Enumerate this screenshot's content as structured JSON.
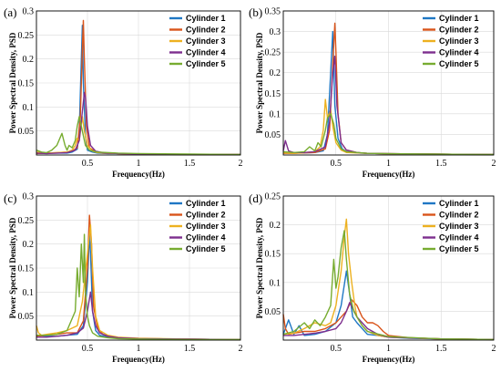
{
  "chart_data": [
    {
      "panel": "(a)",
      "type": "line",
      "xlabel": "Frequency(Hz)",
      "ylabel": "Power Spectral Density, PSD",
      "xlim": [
        0,
        2
      ],
      "ylim": [
        0,
        0.3
      ],
      "xticks": [
        "0.5",
        "1",
        "1.5",
        "2"
      ],
      "yticks": [
        "0.05",
        "0.1",
        "0.15",
        "0.2",
        "0.25",
        "0.3"
      ],
      "grid": true,
      "legend": "top-right",
      "series": [
        {
          "name": "Cylinder 1",
          "color": "#1f77c4",
          "x": [
            0,
            0.1,
            0.2,
            0.3,
            0.35,
            0.4,
            0.42,
            0.44,
            0.45,
            0.46,
            0.48,
            0.5,
            0.55,
            0.6,
            0.7,
            0.8,
            1.0,
            1.5,
            2.0
          ],
          "y": [
            0.005,
            0.004,
            0.004,
            0.004,
            0.006,
            0.012,
            0.05,
            0.2,
            0.27,
            0.15,
            0.04,
            0.01,
            0.006,
            0.004,
            0.003,
            0.003,
            0.002,
            0.001,
            0.001
          ]
        },
        {
          "name": "Cylinder 2",
          "color": "#d9541a",
          "x": [
            0,
            0.1,
            0.2,
            0.3,
            0.35,
            0.4,
            0.43,
            0.45,
            0.46,
            0.47,
            0.49,
            0.52,
            0.58,
            0.65,
            0.8,
            1.0,
            1.5,
            2.0
          ],
          "y": [
            0.003,
            0.004,
            0.005,
            0.006,
            0.008,
            0.015,
            0.08,
            0.22,
            0.28,
            0.2,
            0.06,
            0.015,
            0.007,
            0.004,
            0.003,
            0.002,
            0.001,
            0.001
          ]
        },
        {
          "name": "Cylinder 3",
          "color": "#edb120",
          "x": [
            0,
            0.1,
            0.2,
            0.3,
            0.35,
            0.38,
            0.4,
            0.42,
            0.45,
            0.47,
            0.5,
            0.55,
            0.6,
            0.8,
            1.0,
            1.5,
            2.0
          ],
          "y": [
            0.006,
            0.004,
            0.005,
            0.006,
            0.01,
            0.02,
            0.035,
            0.03,
            0.08,
            0.05,
            0.02,
            0.008,
            0.005,
            0.003,
            0.002,
            0.001,
            0.001
          ]
        },
        {
          "name": "Cylinder 4",
          "color": "#7e2f8e",
          "x": [
            0,
            0.1,
            0.2,
            0.3,
            0.38,
            0.42,
            0.45,
            0.47,
            0.48,
            0.5,
            0.53,
            0.58,
            0.65,
            0.8,
            1.0,
            1.5,
            2.0
          ],
          "y": [
            0.004,
            0.003,
            0.004,
            0.005,
            0.01,
            0.03,
            0.09,
            0.13,
            0.12,
            0.06,
            0.02,
            0.008,
            0.005,
            0.003,
            0.002,
            0.001,
            0.001
          ]
        },
        {
          "name": "Cylinder 5",
          "color": "#77ac30",
          "x": [
            0,
            0.05,
            0.1,
            0.15,
            0.2,
            0.25,
            0.28,
            0.3,
            0.32,
            0.35,
            0.38,
            0.4,
            0.42,
            0.45,
            0.48,
            0.52,
            0.6,
            0.8,
            1.0,
            1.5,
            2.0
          ],
          "y": [
            0.01,
            0.006,
            0.005,
            0.01,
            0.02,
            0.045,
            0.02,
            0.01,
            0.02,
            0.015,
            0.03,
            0.06,
            0.08,
            0.05,
            0.02,
            0.01,
            0.006,
            0.004,
            0.003,
            0.002,
            0.001
          ]
        }
      ]
    },
    {
      "panel": "(b)",
      "type": "line",
      "xlabel": "Frequency(Hz)",
      "ylabel": "Power Spectral Density, PSD",
      "xlim": [
        0,
        2
      ],
      "ylim": [
        0,
        0.35
      ],
      "xticks": [
        "0.5",
        "1",
        "1.5",
        "2"
      ],
      "yticks": [
        "0.05",
        "0.1",
        "0.15",
        "0.2",
        "0.25",
        "0.3",
        "0.35"
      ],
      "grid": true,
      "legend": "top-right",
      "series": [
        {
          "name": "Cylinder 1",
          "color": "#1f77c4",
          "x": [
            0,
            0.1,
            0.2,
            0.3,
            0.38,
            0.42,
            0.45,
            0.47,
            0.49,
            0.52,
            0.56,
            0.6,
            0.7,
            0.8,
            1.0,
            1.5,
            2.0
          ],
          "y": [
            0.006,
            0.005,
            0.005,
            0.006,
            0.01,
            0.05,
            0.2,
            0.3,
            0.12,
            0.04,
            0.015,
            0.008,
            0.005,
            0.004,
            0.003,
            0.002,
            0.001
          ]
        },
        {
          "name": "Cylinder 2",
          "color": "#d9541a",
          "x": [
            0,
            0.1,
            0.2,
            0.3,
            0.4,
            0.44,
            0.47,
            0.49,
            0.5,
            0.52,
            0.55,
            0.6,
            0.7,
            0.8,
            1.0,
            1.5,
            2.0
          ],
          "y": [
            0.004,
            0.004,
            0.005,
            0.006,
            0.015,
            0.06,
            0.22,
            0.32,
            0.25,
            0.1,
            0.03,
            0.012,
            0.006,
            0.004,
            0.003,
            0.002,
            0.001
          ]
        },
        {
          "name": "Cylinder 3",
          "color": "#edb120",
          "x": [
            0,
            0.1,
            0.2,
            0.3,
            0.35,
            0.38,
            0.4,
            0.42,
            0.45,
            0.47,
            0.5,
            0.55,
            0.6,
            0.8,
            1.0,
            1.5,
            2.0
          ],
          "y": [
            0.005,
            0.004,
            0.006,
            0.008,
            0.02,
            0.06,
            0.135,
            0.09,
            0.11,
            0.07,
            0.03,
            0.012,
            0.006,
            0.004,
            0.003,
            0.002,
            0.001
          ]
        },
        {
          "name": "Cylinder 4",
          "color": "#7e2f8e",
          "x": [
            0,
            0.02,
            0.05,
            0.1,
            0.2,
            0.3,
            0.4,
            0.44,
            0.47,
            0.49,
            0.51,
            0.55,
            0.6,
            0.7,
            0.8,
            1.0,
            1.5,
            2.0
          ],
          "y": [
            0.01,
            0.035,
            0.01,
            0.006,
            0.006,
            0.008,
            0.02,
            0.08,
            0.2,
            0.24,
            0.12,
            0.03,
            0.012,
            0.006,
            0.004,
            0.003,
            0.002,
            0.001
          ]
        },
        {
          "name": "Cylinder 5",
          "color": "#77ac30",
          "x": [
            0,
            0.1,
            0.2,
            0.25,
            0.3,
            0.33,
            0.36,
            0.4,
            0.42,
            0.45,
            0.48,
            0.5,
            0.55,
            0.6,
            0.8,
            1.0,
            1.5,
            2.0
          ],
          "y": [
            0.008,
            0.006,
            0.008,
            0.02,
            0.01,
            0.03,
            0.02,
            0.06,
            0.09,
            0.1,
            0.075,
            0.04,
            0.015,
            0.008,
            0.004,
            0.003,
            0.002,
            0.001
          ]
        }
      ]
    },
    {
      "panel": "(c)",
      "type": "line",
      "xlabel": "Frequency(Hz)",
      "ylabel": "Power Spectral Density, PSD",
      "xlim": [
        0,
        2
      ],
      "ylim": [
        0,
        0.3
      ],
      "xticks": [
        "0.5",
        "1",
        "1.5",
        "2"
      ],
      "yticks": [
        "0.05",
        "0.1",
        "0.15",
        "0.2",
        "0.25",
        "0.3"
      ],
      "grid": true,
      "legend": "top-right",
      "series": [
        {
          "name": "Cylinder 1",
          "color": "#1f77c4",
          "x": [
            0,
            0.1,
            0.2,
            0.3,
            0.4,
            0.46,
            0.5,
            0.52,
            0.53,
            0.55,
            0.58,
            0.62,
            0.7,
            0.8,
            1.0,
            1.5,
            2.0
          ],
          "y": [
            0.01,
            0.008,
            0.008,
            0.01,
            0.012,
            0.03,
            0.12,
            0.22,
            0.18,
            0.06,
            0.02,
            0.01,
            0.006,
            0.004,
            0.003,
            0.002,
            0.001
          ]
        },
        {
          "name": "Cylinder 2",
          "color": "#d9541a",
          "x": [
            0,
            0.1,
            0.2,
            0.3,
            0.4,
            0.46,
            0.5,
            0.52,
            0.54,
            0.56,
            0.6,
            0.65,
            0.7,
            0.8,
            1.0,
            1.5,
            2.0
          ],
          "y": [
            0.008,
            0.01,
            0.012,
            0.015,
            0.015,
            0.04,
            0.15,
            0.26,
            0.2,
            0.07,
            0.025,
            0.012,
            0.008,
            0.005,
            0.003,
            0.002,
            0.001
          ]
        },
        {
          "name": "Cylinder 3",
          "color": "#edb120",
          "x": [
            0,
            0.02,
            0.05,
            0.1,
            0.2,
            0.3,
            0.4,
            0.45,
            0.5,
            0.53,
            0.55,
            0.58,
            0.62,
            0.7,
            0.8,
            1.0,
            1.5,
            2.0
          ],
          "y": [
            0.03,
            0.015,
            0.01,
            0.012,
            0.015,
            0.02,
            0.03,
            0.08,
            0.18,
            0.24,
            0.15,
            0.05,
            0.02,
            0.01,
            0.006,
            0.004,
            0.002,
            0.001
          ]
        },
        {
          "name": "Cylinder 4",
          "color": "#7e2f8e",
          "x": [
            0,
            0.1,
            0.2,
            0.3,
            0.4,
            0.46,
            0.5,
            0.53,
            0.55,
            0.58,
            0.62,
            0.7,
            0.8,
            1.0,
            1.5,
            2.0
          ],
          "y": [
            0.006,
            0.006,
            0.008,
            0.01,
            0.015,
            0.025,
            0.06,
            0.1,
            0.06,
            0.03,
            0.015,
            0.008,
            0.005,
            0.003,
            0.002,
            0.001
          ]
        },
        {
          "name": "Cylinder 5",
          "color": "#77ac30",
          "x": [
            0,
            0.1,
            0.2,
            0.3,
            0.38,
            0.4,
            0.42,
            0.44,
            0.46,
            0.47,
            0.48,
            0.5,
            0.52,
            0.55,
            0.6,
            0.7,
            0.8,
            1.0,
            1.5,
            2.0
          ],
          "y": [
            0.01,
            0.01,
            0.012,
            0.02,
            0.06,
            0.15,
            0.09,
            0.2,
            0.12,
            0.22,
            0.1,
            0.05,
            0.03,
            0.015,
            0.008,
            0.005,
            0.003,
            0.002,
            0.001,
            0.001
          ]
        }
      ]
    },
    {
      "panel": "(d)",
      "type": "line",
      "xlabel": "Frequency(Hz)",
      "ylabel": "Power Spectral Density, PSD",
      "xlim": [
        0,
        2
      ],
      "ylim": [
        0,
        0.25
      ],
      "xticks": [
        "0.5",
        "1",
        "1.5",
        "2"
      ],
      "yticks": [
        "0.05",
        "0.1",
        "0.15",
        "0.2",
        "0.25"
      ],
      "grid": true,
      "legend": "top-right",
      "series": [
        {
          "name": "Cylinder 1",
          "color": "#1f77c4",
          "x": [
            0,
            0.05,
            0.1,
            0.15,
            0.2,
            0.3,
            0.4,
            0.5,
            0.55,
            0.6,
            0.63,
            0.66,
            0.7,
            0.75,
            0.8,
            0.9,
            1.0,
            1.2,
            1.5,
            2.0
          ],
          "y": [
            0.01,
            0.035,
            0.01,
            0.025,
            0.008,
            0.01,
            0.015,
            0.03,
            0.06,
            0.12,
            0.08,
            0.04,
            0.03,
            0.02,
            0.01,
            0.008,
            0.005,
            0.003,
            0.002,
            0.001
          ]
        },
        {
          "name": "Cylinder 2",
          "color": "#d9541a",
          "x": [
            0,
            0.02,
            0.05,
            0.1,
            0.2,
            0.3,
            0.4,
            0.5,
            0.55,
            0.6,
            0.65,
            0.7,
            0.75,
            0.8,
            0.85,
            0.9,
            0.95,
            1.0,
            1.2,
            1.5,
            2.0
          ],
          "y": [
            0.045,
            0.02,
            0.01,
            0.012,
            0.015,
            0.015,
            0.02,
            0.03,
            0.04,
            0.05,
            0.07,
            0.06,
            0.04,
            0.03,
            0.03,
            0.025,
            0.015,
            0.008,
            0.004,
            0.002,
            0.001
          ]
        },
        {
          "name": "Cylinder 3",
          "color": "#edb120",
          "x": [
            0,
            0.1,
            0.2,
            0.3,
            0.4,
            0.45,
            0.5,
            0.55,
            0.58,
            0.6,
            0.62,
            0.65,
            0.68,
            0.7,
            0.75,
            0.8,
            0.9,
            1.0,
            1.5,
            2.0
          ],
          "y": [
            0.01,
            0.012,
            0.02,
            0.03,
            0.025,
            0.03,
            0.06,
            0.12,
            0.18,
            0.21,
            0.15,
            0.1,
            0.06,
            0.04,
            0.025,
            0.015,
            0.008,
            0.005,
            0.002,
            0.001
          ]
        },
        {
          "name": "Cylinder 4",
          "color": "#7e2f8e",
          "x": [
            0,
            0.1,
            0.2,
            0.3,
            0.4,
            0.5,
            0.55,
            0.6,
            0.63,
            0.66,
            0.7,
            0.75,
            0.8,
            0.9,
            1.0,
            1.5,
            2.0
          ],
          "y": [
            0.008,
            0.008,
            0.01,
            0.012,
            0.015,
            0.02,
            0.03,
            0.05,
            0.065,
            0.055,
            0.04,
            0.03,
            0.02,
            0.01,
            0.005,
            0.002,
            0.001
          ]
        },
        {
          "name": "Cylinder 5",
          "color": "#77ac30",
          "x": [
            0,
            0.1,
            0.2,
            0.25,
            0.3,
            0.35,
            0.4,
            0.45,
            0.48,
            0.5,
            0.52,
            0.55,
            0.58,
            0.6,
            0.63,
            0.67,
            0.7,
            0.75,
            0.8,
            1.0,
            1.5,
            2.0
          ],
          "y": [
            0.01,
            0.015,
            0.03,
            0.02,
            0.035,
            0.025,
            0.04,
            0.06,
            0.14,
            0.09,
            0.11,
            0.16,
            0.19,
            0.14,
            0.08,
            0.05,
            0.04,
            0.025,
            0.015,
            0.006,
            0.002,
            0.001
          ]
        }
      ]
    }
  ]
}
